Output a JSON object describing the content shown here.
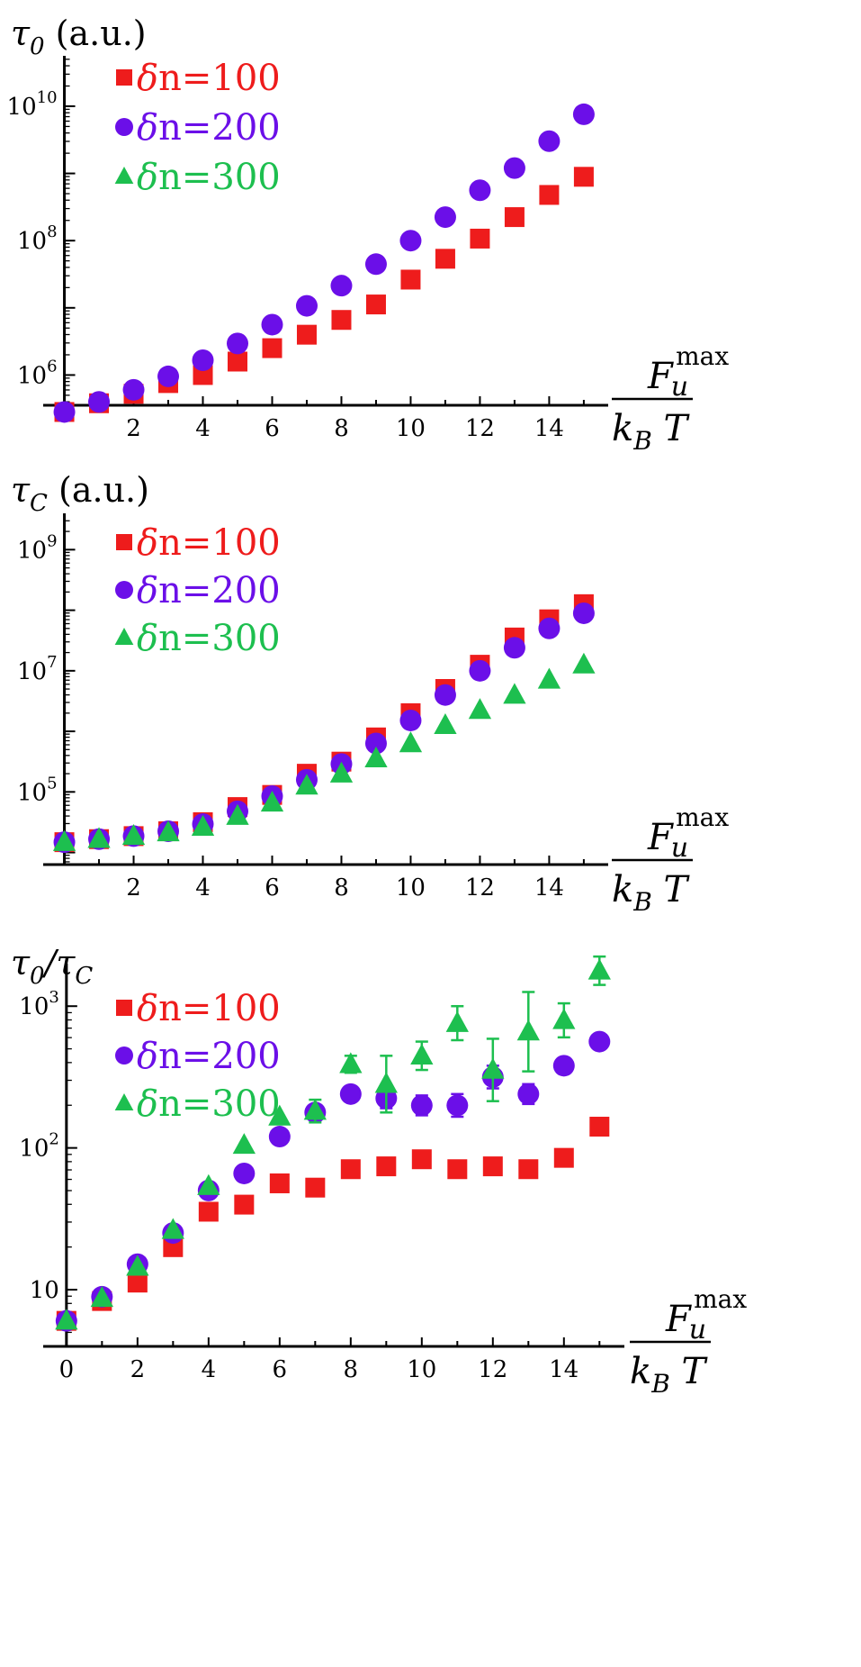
{
  "chart_data": [
    {
      "type": "scatter",
      "title": "",
      "ylabel": "τ0 (a.u.)",
      "ylabel_main": "τ",
      "ylabel_sub": "0",
      "ylabel_rest": " (a.u.)",
      "xlabel_top": "F",
      "xlabel_top_sub": "u",
      "xlabel_top_sup": "max",
      "xlabel_bottom": "k",
      "xlabel_bottom_sub": "B",
      "xlabel_bottom_rest": " T",
      "xlim": [
        -0.3,
        15.6
      ],
      "ylim_log10": [
        5.55,
        10.75
      ],
      "yscale": "log",
      "x_ticks": [
        2,
        4,
        6,
        8,
        10,
        12,
        14
      ],
      "x_tick_labels": [
        "2",
        "4",
        "6",
        "8",
        "10",
        "12",
        "14"
      ],
      "y_ticks_log10": [
        6,
        8,
        10
      ],
      "y_tick_labels": [
        {
          "base": "10",
          "exp": "6"
        },
        {
          "base": "10",
          "exp": "8"
        },
        {
          "base": "10",
          "exp": "10"
        }
      ],
      "legend_position": "top-left",
      "series": [
        {
          "name": "δn=100",
          "label_greek": "δ",
          "label_rest": "n=100",
          "marker": "square",
          "color": "#ee1c1c",
          "x": [
            0,
            1,
            2,
            3,
            4,
            5,
            6,
            7,
            8,
            9,
            10,
            11,
            12,
            13,
            14,
            15
          ],
          "log10_y": [
            5.45,
            5.58,
            5.72,
            5.88,
            6.0,
            6.2,
            6.4,
            6.6,
            6.82,
            7.05,
            7.42,
            7.73,
            8.03,
            8.35,
            8.68,
            8.95
          ],
          "y": [
            281838,
            380189,
            524807,
            758578,
            1000000,
            1584893,
            2511886,
            3981072,
            6606934,
            11220185,
            26302680,
            53703180,
            107151931,
            223872114,
            478630092,
            891250938
          ]
        },
        {
          "name": "δn=200",
          "label_greek": "δ",
          "label_rest": "n=200",
          "marker": "circle",
          "color": "#6b0fe8",
          "x": [
            0,
            1,
            2,
            3,
            4,
            5,
            6,
            7,
            8,
            9,
            10,
            11,
            12,
            13,
            14,
            15
          ],
          "log10_y": [
            5.45,
            5.6,
            5.78,
            5.98,
            6.22,
            6.47,
            6.75,
            7.03,
            7.33,
            7.65,
            8.0,
            8.35,
            8.75,
            9.08,
            9.48,
            9.88
          ],
          "y": [
            281838,
            398107,
            602560,
            954993,
            1659587,
            2951209,
            5623413,
            10715193,
            21379621,
            44668359,
            100000000,
            223872114,
            562341325,
            1202264435,
            3019951720,
            7585775750
          ]
        }
      ]
    },
    {
      "type": "scatter",
      "title": "",
      "ylabel": "τC (a.u.)",
      "ylabel_main": "τ",
      "ylabel_sub": "C",
      "ylabel_rest": " (a.u.)",
      "xlabel_top": "F",
      "xlabel_top_sub": "u",
      "xlabel_top_sup": "max",
      "xlabel_bottom": "k",
      "xlabel_bottom_sub": "B",
      "xlabel_bottom_rest": " T",
      "xlim": [
        -0.3,
        15.6
      ],
      "ylim_log10": [
        3.8,
        9.6
      ],
      "yscale": "log",
      "x_ticks": [
        2,
        4,
        6,
        8,
        10,
        12,
        14
      ],
      "x_tick_labels": [
        "2",
        "4",
        "6",
        "8",
        "10",
        "12",
        "14"
      ],
      "y_ticks_log10": [
        5,
        7,
        9
      ],
      "y_tick_labels": [
        {
          "base": "10",
          "exp": "5"
        },
        {
          "base": "10",
          "exp": "7"
        },
        {
          "base": "10",
          "exp": "9"
        }
      ],
      "legend_position": "top-left",
      "series": [
        {
          "name": "δn=100",
          "label_greek": "δ",
          "label_rest": "n=100",
          "marker": "square",
          "color": "#ee1c1c",
          "x": [
            0,
            1,
            2,
            3,
            4,
            5,
            6,
            7,
            8,
            9,
            10,
            11,
            12,
            13,
            14,
            15
          ],
          "log10_y": [
            4.17,
            4.22,
            4.27,
            4.35,
            4.5,
            4.75,
            4.95,
            5.3,
            5.5,
            5.9,
            6.3,
            6.7,
            7.1,
            7.55,
            7.85,
            8.1
          ],
          "y": [
            14791,
            16596,
            18621,
            22387,
            31623,
            56234,
            89125,
            199526,
            316228,
            794328,
            1995262,
            5011872,
            12589254,
            35481339,
            70794578,
            125892541
          ]
        },
        {
          "name": "δn=200",
          "label_greek": "δ",
          "label_rest": "n=200",
          "marker": "circle",
          "color": "#6b0fe8",
          "x": [
            0,
            1,
            2,
            3,
            4,
            5,
            6,
            7,
            8,
            9,
            10,
            11,
            12,
            13,
            14,
            15
          ],
          "log10_y": [
            4.17,
            4.22,
            4.27,
            4.35,
            4.47,
            4.68,
            4.93,
            5.2,
            5.46,
            5.8,
            6.18,
            6.6,
            7.0,
            7.38,
            7.7,
            7.95
          ],
          "y": [
            14791,
            16596,
            18621,
            22387,
            29512,
            47863,
            85114,
            158489,
            288403,
            630957,
            1513561,
            3981072,
            10000000,
            23988329,
            50118723,
            89125094
          ]
        },
        {
          "name": "δn=300",
          "label_greek": "δ",
          "label_rest": "n=300",
          "marker": "triangle",
          "color": "#1dbf4f",
          "x": [
            0,
            1,
            2,
            3,
            4,
            5,
            6,
            7,
            8,
            9,
            10,
            11,
            12,
            13,
            14,
            15
          ],
          "log10_y": [
            4.17,
            4.22,
            4.27,
            4.33,
            4.42,
            4.6,
            4.82,
            5.1,
            5.3,
            5.55,
            5.8,
            6.1,
            6.35,
            6.6,
            6.85,
            7.1
          ],
          "y": [
            14791,
            16596,
            18621,
            21380,
            26303,
            39811,
            66069,
            125893,
            199526,
            354813,
            630957,
            1258925,
            2238721,
            3981072,
            7079458,
            12589254
          ]
        }
      ]
    },
    {
      "type": "scatter",
      "title": "",
      "ylabel": "τ0/τC",
      "ylabel_main": "τ",
      "ylabel_sub": "0",
      "ylabel_slash": "/τ",
      "ylabel_sub2": "C",
      "xlabel_top": "F",
      "xlabel_top_sub": "u",
      "xlabel_top_sup": "max",
      "xlabel_bottom": "k",
      "xlabel_bottom_sub": "B",
      "xlabel_bottom_rest": " T",
      "xlim": [
        -0.3,
        15.6
      ],
      "ylim_log10": [
        0.6,
        3.3
      ],
      "yscale": "log",
      "x_ticks": [
        0,
        2,
        4,
        6,
        8,
        10,
        12,
        14
      ],
      "x_tick_labels": [
        "0",
        "2",
        "4",
        "6",
        "8",
        "10",
        "12",
        "14"
      ],
      "y_ticks_log10": [
        1,
        2,
        3
      ],
      "y_tick_labels": [
        {
          "base": "10",
          "exp": ""
        },
        {
          "base": "10",
          "exp": "2"
        },
        {
          "base": "10",
          "exp": "3"
        }
      ],
      "legend_position": "top-left",
      "series": [
        {
          "name": "δn=100",
          "label_greek": "δ",
          "label_rest": "n=100",
          "marker": "square",
          "color": "#ee1c1c",
          "x": [
            0,
            1,
            2,
            3,
            4,
            5,
            6,
            7,
            8,
            9,
            10,
            11,
            12,
            13,
            14,
            15
          ],
          "log10_y": [
            0.78,
            0.92,
            1.05,
            1.3,
            1.55,
            1.6,
            1.75,
            1.72,
            1.85,
            1.87,
            1.92,
            1.85,
            1.87,
            1.85,
            1.93,
            2.15
          ],
          "y": [
            6.03,
            8.32,
            11.22,
            19.95,
            35.48,
            39.81,
            56.23,
            52.48,
            70.79,
            74.13,
            83.18,
            70.79,
            74.13,
            70.79,
            85.11,
            141.25
          ]
        },
        {
          "name": "δn=200",
          "label_greek": "δ",
          "label_rest": "n=200",
          "marker": "circle",
          "color": "#6b0fe8",
          "x": [
            0,
            1,
            2,
            3,
            4,
            5,
            6,
            7,
            8,
            9,
            10,
            11,
            12,
            13,
            14,
            15
          ],
          "log10_y": [
            0.78,
            0.95,
            1.18,
            1.4,
            1.7,
            1.82,
            2.08,
            2.25,
            2.38,
            2.35,
            2.3,
            2.3,
            2.5,
            2.38,
            2.58,
            2.75
          ],
          "y": [
            6.03,
            8.91,
            15.14,
            25.12,
            50.12,
            66.07,
            120.23,
            177.83,
            239.88,
            223.87,
            199.53,
            199.53,
            316.23,
            239.88,
            380.19,
            562.34
          ],
          "err_log10": [
            0,
            0,
            0,
            0,
            0,
            0,
            0,
            0,
            0.05,
            0.07,
            0.07,
            0.08,
            0.08,
            0.07,
            0.05,
            0.04
          ]
        },
        {
          "name": "δn=300",
          "label_greek": "δ",
          "label_rest": "n=300",
          "marker": "triangle",
          "color": "#1dbf4f",
          "x": [
            0,
            1,
            2,
            3,
            4,
            5,
            6,
            7,
            8,
            9,
            10,
            11,
            12,
            13,
            14,
            15
          ],
          "log10_y": [
            0.78,
            0.94,
            1.16,
            1.42,
            1.73,
            2.02,
            2.22,
            2.26,
            2.59,
            2.45,
            2.65,
            2.88,
            2.55,
            2.82,
            2.9,
            3.25
          ],
          "y": [
            6.03,
            8.71,
            14.45,
            26.3,
            53.7,
            104.71,
            165.96,
            181.97,
            389.05,
            281.84,
            446.68,
            758.58,
            354.81,
            660.69,
            794.33,
            1778.28
          ],
          "err_log10": [
            0,
            0,
            0,
            0,
            0,
            0,
            0,
            0.08,
            0.06,
            0.2,
            0.1,
            0.12,
            0.22,
            0.28,
            0.12,
            0.1
          ]
        }
      ]
    }
  ]
}
